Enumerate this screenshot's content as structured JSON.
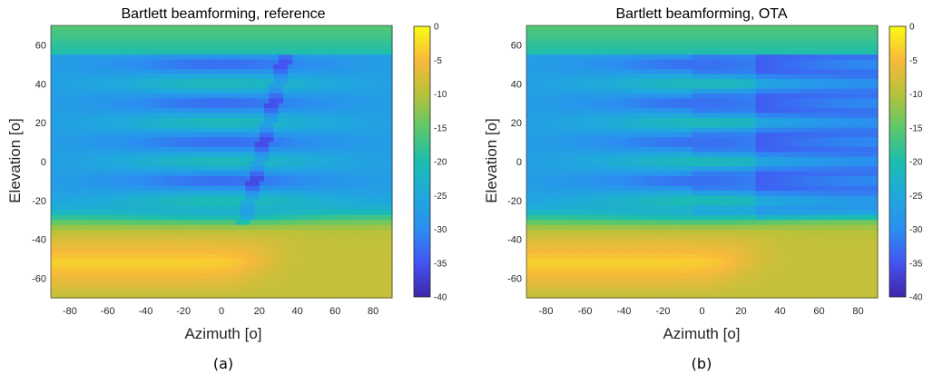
{
  "chart_data": [
    {
      "type": "heatmap",
      "title": "Bartlett beamforming, reference",
      "xlabel": "Azimuth [o]",
      "ylabel": "Elevation [o]",
      "xlim": [
        -90,
        90
      ],
      "ylim": [
        -70,
        70
      ],
      "x_ticks": [
        "-80",
        "-60",
        "-40",
        "-20",
        "0",
        "20",
        "40",
        "60",
        "80"
      ],
      "y_ticks": [
        "60",
        "40",
        "20",
        "0",
        "-20",
        "-40",
        "-60"
      ],
      "colorbar": {
        "range": [
          -40,
          0
        ],
        "ticks": [
          "0",
          "-5",
          "-10",
          "-15",
          "-20",
          "-25",
          "-30",
          "-35",
          "-40"
        ],
        "colormap": "parula"
      },
      "caption": "(a)"
    },
    {
      "type": "heatmap",
      "title": "Bartlett beamforming, OTA",
      "xlabel": "Azimuth [o]",
      "ylabel": "Elevation [o]",
      "xlim": [
        -90,
        90
      ],
      "ylim": [
        -70,
        70
      ],
      "x_ticks": [
        "-80",
        "-60",
        "-40",
        "-20",
        "0",
        "20",
        "40",
        "60",
        "80"
      ],
      "y_ticks": [
        "60",
        "40",
        "20",
        "0",
        "-20",
        "-40",
        "-60"
      ],
      "colorbar": {
        "range": [
          -40,
          0
        ],
        "ticks": [
          "0",
          "-5",
          "-10",
          "-15",
          "-20",
          "-25",
          "-30",
          "-35",
          "-40"
        ],
        "colormap": "parula"
      },
      "caption": "(b)"
    }
  ]
}
